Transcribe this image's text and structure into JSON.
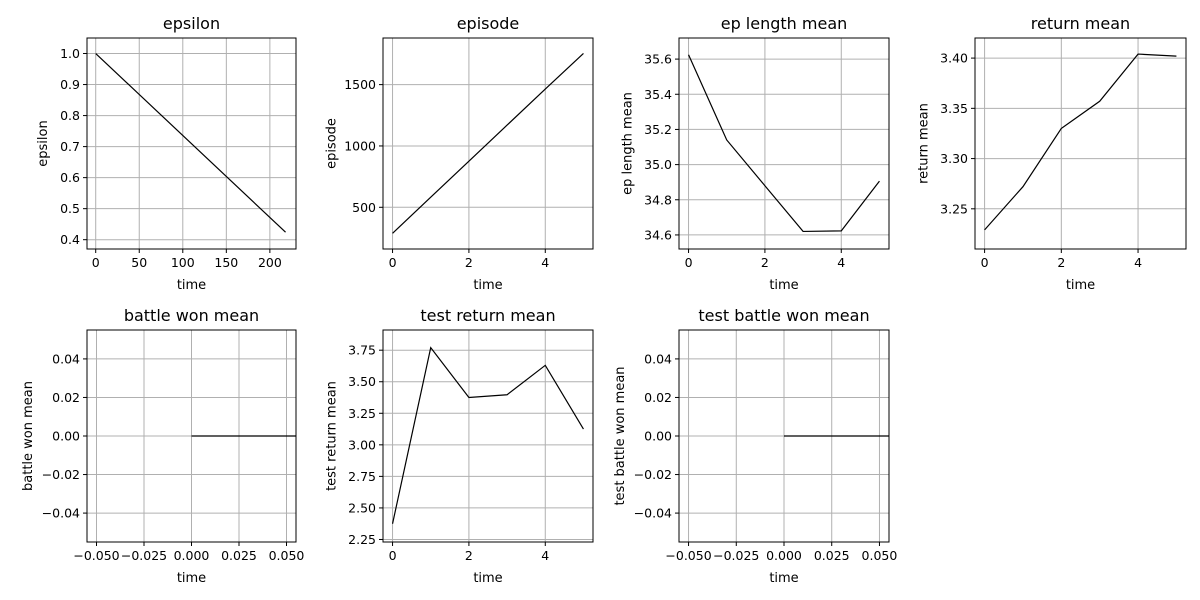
{
  "chart_data": [
    {
      "type": "line",
      "title": "epsilon",
      "xlabel": "time",
      "ylabel": "epsilon",
      "xlim": [
        -10,
        230
      ],
      "ylim": [
        0.37,
        1.05
      ],
      "xticks": [
        0,
        50,
        100,
        150,
        200
      ],
      "xtick_labels": [
        "0",
        "50",
        "100",
        "150",
        "200"
      ],
      "yticks": [
        0.4,
        0.5,
        0.6,
        0.7,
        0.8,
        0.9,
        1.0
      ],
      "ytick_labels": [
        "0.4",
        "0.5",
        "0.6",
        "0.7",
        "0.8",
        "0.9",
        "1.0"
      ],
      "grid": true,
      "series": [
        {
          "x": [
            0,
            218
          ],
          "y": [
            1.0,
            0.424
          ]
        }
      ]
    },
    {
      "type": "line",
      "title": "episode",
      "xlabel": "time",
      "ylabel": "episode",
      "xlim": [
        -0.25,
        5.25
      ],
      "ylim": [
        160,
        1880
      ],
      "xticks": [
        0,
        2,
        4
      ],
      "xtick_labels": [
        "0",
        "2",
        "4"
      ],
      "yticks": [
        500,
        1000,
        1500
      ],
      "ytick_labels": [
        "500",
        "1000",
        "1500"
      ],
      "grid": true,
      "series": [
        {
          "x": [
            0,
            1,
            2,
            3,
            4,
            5
          ],
          "y": [
            288,
            582,
            876,
            1170,
            1464,
            1754
          ]
        }
      ]
    },
    {
      "type": "line",
      "title": "ep length mean",
      "xlabel": "time",
      "ylabel": "ep length mean",
      "xlim": [
        -0.25,
        5.25
      ],
      "ylim": [
        34.52,
        35.72
      ],
      "xticks": [
        0,
        2,
        4
      ],
      "xtick_labels": [
        "0",
        "2",
        "4"
      ],
      "yticks": [
        34.6,
        34.8,
        35.0,
        35.2,
        35.4,
        35.6
      ],
      "ytick_labels": [
        "34.6",
        "34.8",
        "35.0",
        "35.2",
        "35.4",
        "35.6"
      ],
      "grid": true,
      "series": [
        {
          "x": [
            0,
            1,
            2,
            3,
            4,
            5
          ],
          "y": [
            35.625,
            35.14,
            34.88,
            34.62,
            34.623,
            34.906
          ]
        }
      ]
    },
    {
      "type": "line",
      "title": "return mean",
      "xlabel": "time",
      "ylabel": "return mean",
      "xlim": [
        -0.25,
        5.25
      ],
      "ylim": [
        3.21,
        3.42
      ],
      "xticks": [
        0,
        2,
        4
      ],
      "xtick_labels": [
        "0",
        "2",
        "4"
      ],
      "yticks": [
        3.25,
        3.3,
        3.35,
        3.4
      ],
      "ytick_labels": [
        "3.25",
        "3.30",
        "3.35",
        "3.40"
      ],
      "grid": true,
      "series": [
        {
          "x": [
            0,
            1,
            2,
            3,
            4,
            5
          ],
          "y": [
            3.229,
            3.272,
            3.33,
            3.357,
            3.404,
            3.402
          ]
        }
      ]
    },
    {
      "type": "line",
      "title": "battle won mean",
      "xlabel": "time",
      "ylabel": "battle won mean",
      "xlim": [
        -0.055,
        0.055
      ],
      "ylim": [
        -0.055,
        0.055
      ],
      "xticks": [
        -0.05,
        -0.025,
        0.0,
        0.025,
        0.05
      ],
      "xtick_labels": [
        "−0.050",
        "−0.025",
        "0.000",
        "0.025",
        "0.050"
      ],
      "yticks": [
        -0.04,
        -0.02,
        0.0,
        0.02,
        0.04
      ],
      "ytick_labels": [
        "−0.04",
        "−0.02",
        "0.00",
        "0.02",
        "0.04"
      ],
      "grid": true,
      "series": [
        {
          "x": [
            0.0,
            0.055
          ],
          "y": [
            0.0,
            0.0
          ]
        }
      ]
    },
    {
      "type": "line",
      "title": "test return mean",
      "xlabel": "time",
      "ylabel": "test return mean",
      "xlim": [
        -0.25,
        5.25
      ],
      "ylim": [
        2.23,
        3.91
      ],
      "xticks": [
        0,
        2,
        4
      ],
      "xtick_labels": [
        "0",
        "2",
        "4"
      ],
      "yticks": [
        2.25,
        2.5,
        2.75,
        3.0,
        3.25,
        3.5,
        3.75
      ],
      "ytick_labels": [
        "2.25",
        "2.50",
        "2.75",
        "3.00",
        "3.25",
        "3.50",
        "3.75"
      ],
      "grid": true,
      "series": [
        {
          "x": [
            0,
            1,
            2,
            3,
            4,
            5
          ],
          "y": [
            2.375,
            3.77,
            3.375,
            3.397,
            3.63,
            3.125
          ]
        }
      ]
    },
    {
      "type": "line",
      "title": "test battle won mean",
      "xlabel": "time",
      "ylabel": "test battle won mean",
      "xlim": [
        -0.055,
        0.055
      ],
      "ylim": [
        -0.055,
        0.055
      ],
      "xticks": [
        -0.05,
        -0.025,
        0.0,
        0.025,
        0.05
      ],
      "xtick_labels": [
        "−0.050",
        "−0.025",
        "0.000",
        "0.025",
        "0.050"
      ],
      "yticks": [
        -0.04,
        -0.02,
        0.0,
        0.02,
        0.04
      ],
      "ytick_labels": [
        "−0.04",
        "−0.02",
        "0.00",
        "0.02",
        "0.04"
      ],
      "grid": true,
      "series": [
        {
          "x": [
            0.0,
            0.055
          ],
          "y": [
            0.0,
            0.0
          ]
        }
      ]
    }
  ]
}
